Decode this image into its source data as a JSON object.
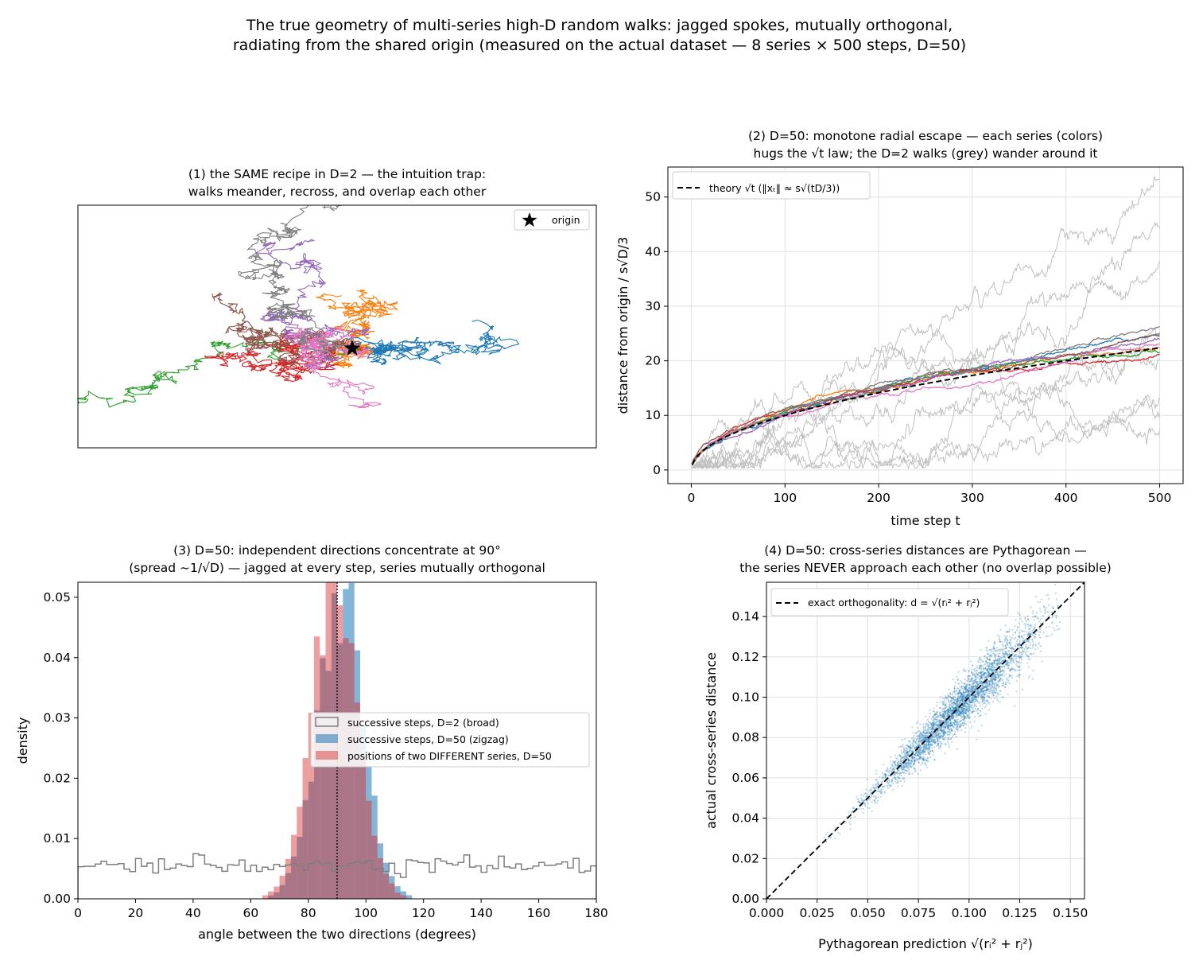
{
  "suptitle": {
    "line1": "The true geometry of multi-series high-D random walks: jagged spokes, mutually orthogonal,",
    "line2": "radiating from the shared origin (measured on the actual dataset — 8 series × 500 steps, D=50)"
  },
  "palette": [
    "#1f77b4",
    "#ff7f0e",
    "#2ca02c",
    "#d62728",
    "#9467bd",
    "#8c564b",
    "#e377c2",
    "#7f7f7f"
  ],
  "chart_data": [
    {
      "id": "panel1",
      "type": "line",
      "title": [
        "(1) the SAME recipe in D=2 — the intuition trap:",
        "walks meander, recross, and overlap each other"
      ],
      "xlabel": "",
      "ylabel": "",
      "axes_ticks": false,
      "legend": {
        "placement": "top-right",
        "entries": [
          "origin"
        ]
      },
      "origin_marker": "star",
      "series": [
        {
          "color": "#1f77b4",
          "endpoint": [
            0.85,
            -0.05
          ]
        },
        {
          "color": "#ff7f0e",
          "endpoint": [
            -0.05,
            0.42
          ]
        },
        {
          "color": "#2ca02c",
          "endpoint": [
            -0.95,
            -0.12
          ]
        },
        {
          "color": "#d62728",
          "endpoint": [
            -0.45,
            0.18
          ]
        },
        {
          "color": "#9467bd",
          "endpoint": [
            -0.12,
            1.0
          ]
        },
        {
          "color": "#8c564b",
          "endpoint": [
            -0.7,
            -0.1
          ]
        },
        {
          "color": "#e377c2",
          "endpoint": [
            0.05,
            -0.1
          ]
        },
        {
          "color": "#7f7f7f",
          "endpoint": [
            0.25,
            0.6
          ]
        }
      ]
    },
    {
      "id": "panel2",
      "type": "line",
      "title": [
        "(2) D=50: monotone radial escape — each series (colors)",
        "hugs the √t law; the D=2 walks (grey) wander around it"
      ],
      "xlabel": "time step  t",
      "ylabel": "distance from origin  /  s√D/3",
      "xlim": [
        -25,
        525
      ],
      "ylim": [
        -2.5,
        55.5
      ],
      "xticks": [
        0,
        100,
        200,
        300,
        400,
        500
      ],
      "yticks": [
        0,
        10,
        20,
        30,
        40,
        50
      ],
      "grid": true,
      "legend": {
        "placement": "top-left",
        "entries": [
          "theory  √t   (‖xₜ‖ ≈ s√(tD/3))"
        ]
      },
      "theory": {
        "label": "theory  √t   (‖xₜ‖ ≈ s√(tD/3))",
        "coef": 1.0,
        "style": "dashed"
      },
      "series_D50_final": [
        24.6,
        22.4,
        21.6,
        21.2,
        24.0,
        24.9,
        23.1,
        26.2
      ],
      "series_D2_final": [
        53.0,
        44.0,
        38.0,
        25.0,
        20.0,
        13.0,
        10.0,
        7.0
      ]
    },
    {
      "id": "panel3",
      "type": "bar",
      "title": [
        "(3) D=50: independent directions concentrate at 90°",
        "(spread ~1/√D) — jagged at every step, series mutually orthogonal"
      ],
      "xlabel": "angle between the two directions  (degrees)",
      "ylabel": "density",
      "xlim": [
        0,
        180
      ],
      "ylim": [
        0,
        0.0525
      ],
      "xticks": [
        0,
        20,
        40,
        60,
        80,
        100,
        120,
        140,
        160,
        180
      ],
      "yticks": [
        0.0,
        0.01,
        0.02,
        0.03,
        0.04,
        0.05
      ],
      "xtick_labels": [
        "0",
        "20",
        "40",
        "60",
        "80",
        "100",
        "120",
        "140",
        "160",
        "180"
      ],
      "ytick_labels": [
        "0.00",
        "0.01",
        "0.02",
        "0.03",
        "0.04",
        "0.05"
      ],
      "vline": 90,
      "legend": {
        "placement": "center-right",
        "entries": [
          "successive steps, D=2 (broad)",
          "successive steps, D=50 (zigzag)",
          "positions of two DIFFERENT series, D=50"
        ]
      },
      "broad": {
        "level": 0.0055,
        "bin_width": 2
      },
      "zigzag": {
        "center": 91,
        "sigma": 8.0,
        "peak": 0.05,
        "bin_width": 2
      },
      "different": {
        "center": 89,
        "sigma": 8.0,
        "peak": 0.05,
        "bin_width": 2
      }
    },
    {
      "id": "panel4",
      "type": "scatter",
      "title": [
        "(4) D=50: cross-series distances are Pythagorean —",
        "the series NEVER approach each other (no overlap possible)"
      ],
      "xlabel": "Pythagorean prediction  √(rᵢ² + rⱼ²)",
      "ylabel": "actual cross-series distance",
      "xlim": [
        0.0,
        0.157
      ],
      "ylim": [
        0.0,
        0.157
      ],
      "xticks": [
        0.0,
        0.025,
        0.05,
        0.075,
        0.1,
        0.125,
        0.15
      ],
      "yticks": [
        0.0,
        0.02,
        0.04,
        0.06,
        0.08,
        0.1,
        0.12,
        0.14
      ],
      "xtick_labels": [
        "0.000",
        "0.025",
        "0.050",
        "0.075",
        "0.100",
        "0.125",
        "0.150"
      ],
      "ytick_labels": [
        "0.00",
        "0.02",
        "0.04",
        "0.06",
        "0.08",
        "0.10",
        "0.12",
        "0.14"
      ],
      "grid": true,
      "legend": {
        "placement": "top-left",
        "entries": [
          "exact orthogonality:  d = √(rᵢ² + rⱼ²)"
        ]
      },
      "point_cloud": {
        "x_range": [
          0.025,
          0.145
        ],
        "x_center": 0.095,
        "relative_spread": 0.06,
        "color": "#1f77b4"
      }
    }
  ]
}
